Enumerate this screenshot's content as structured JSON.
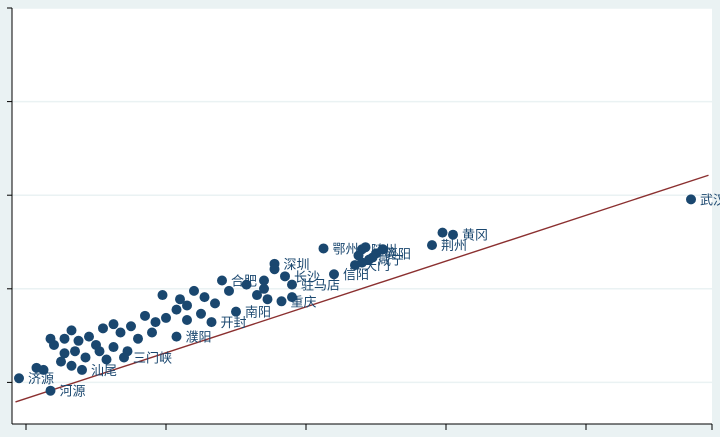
{
  "chart_data": {
    "type": "scatter",
    "title": "",
    "xlabel": "",
    "ylabel": "",
    "xlim": [
      0,
      10
    ],
    "ylim": [
      0,
      10
    ],
    "grid": true,
    "colors": {
      "point": "#1a476f",
      "fit_line": "#8b3030",
      "label": "#1a476f",
      "grid": "#eaf2f3",
      "background": "#eaf2f3",
      "plot_area": "#ffffff"
    },
    "fit_line": {
      "x": [
        0.05,
        9.95
      ],
      "y": [
        0.53,
        5.98
      ]
    },
    "labeled_points": [
      {
        "label": "武汉",
        "x": 9.7,
        "y": 5.4
      },
      {
        "label": "黄冈",
        "x": 6.3,
        "y": 4.55
      },
      {
        "label": "荆州",
        "x": 6.0,
        "y": 4.3
      },
      {
        "label": "鄂州",
        "x": 4.45,
        "y": 4.22
      },
      {
        "label": "随州",
        "x": 5.0,
        "y": 4.2
      },
      {
        "label": "襄阳",
        "x": 5.2,
        "y": 4.1
      },
      {
        "label": "咸宁",
        "x": 5.1,
        "y": 3.95
      },
      {
        "label": "天门",
        "x": 4.9,
        "y": 3.82
      },
      {
        "label": "信阳",
        "x": 4.6,
        "y": 3.6
      },
      {
        "label": "深圳",
        "x": 3.75,
        "y": 3.85
      },
      {
        "label": "长沙",
        "x": 3.9,
        "y": 3.55
      },
      {
        "label": "合肥",
        "x": 3.0,
        "y": 3.45
      },
      {
        "label": "驻马店",
        "x": 4.0,
        "y": 3.35
      },
      {
        "label": "重庆",
        "x": 3.85,
        "y": 2.95
      },
      {
        "label": "南阳",
        "x": 3.2,
        "y": 2.7
      },
      {
        "label": "开封",
        "x": 2.85,
        "y": 2.45
      },
      {
        "label": "濮阳",
        "x": 2.35,
        "y": 2.1
      },
      {
        "label": "三门峡",
        "x": 1.6,
        "y": 1.6
      },
      {
        "label": "汕尾",
        "x": 1.0,
        "y": 1.3
      },
      {
        "label": "济源",
        "x": 0.1,
        "y": 1.1
      },
      {
        "label": "河源",
        "x": 0.55,
        "y": 0.8
      }
    ],
    "points": [
      {
        "label": "武汉",
        "x": 9.7,
        "y": 5.4
      },
      {
        "label": "黄冈",
        "x": 6.3,
        "y": 4.55
      },
      {
        "label": "",
        "x": 6.15,
        "y": 4.6
      },
      {
        "label": "荆州",
        "x": 6.0,
        "y": 4.3
      },
      {
        "label": "鄂州",
        "x": 4.45,
        "y": 4.22
      },
      {
        "label": "随州",
        "x": 5.0,
        "y": 4.2
      },
      {
        "label": "襄阳",
        "x": 5.2,
        "y": 4.1
      },
      {
        "label": "",
        "x": 5.05,
        "y": 4.25
      },
      {
        "label": "",
        "x": 5.3,
        "y": 4.2
      },
      {
        "label": "",
        "x": 5.15,
        "y": 4.0
      },
      {
        "label": "咸宁",
        "x": 5.1,
        "y": 3.95
      },
      {
        "label": "",
        "x": 4.95,
        "y": 4.05
      },
      {
        "label": "天门",
        "x": 4.9,
        "y": 3.82
      },
      {
        "label": "",
        "x": 5.0,
        "y": 3.88
      },
      {
        "label": "信阳",
        "x": 4.6,
        "y": 3.6
      },
      {
        "label": "深圳",
        "x": 3.75,
        "y": 3.85
      },
      {
        "label": "",
        "x": 3.75,
        "y": 3.72
      },
      {
        "label": "长沙",
        "x": 3.9,
        "y": 3.55
      },
      {
        "label": "",
        "x": 3.6,
        "y": 3.45
      },
      {
        "label": "合肥",
        "x": 3.0,
        "y": 3.45
      },
      {
        "label": "驻马店",
        "x": 4.0,
        "y": 3.35
      },
      {
        "label": "",
        "x": 3.35,
        "y": 3.35
      },
      {
        "label": "",
        "x": 3.6,
        "y": 3.25
      },
      {
        "label": "",
        "x": 3.5,
        "y": 3.1
      },
      {
        "label": "",
        "x": 3.65,
        "y": 3.0
      },
      {
        "label": "重庆",
        "x": 3.85,
        "y": 2.95
      },
      {
        "label": "",
        "x": 4.0,
        "y": 3.05
      },
      {
        "label": "",
        "x": 3.1,
        "y": 3.2
      },
      {
        "label": "",
        "x": 2.6,
        "y": 3.2
      },
      {
        "label": "",
        "x": 2.15,
        "y": 3.1
      },
      {
        "label": "",
        "x": 2.4,
        "y": 3.0
      },
      {
        "label": "",
        "x": 2.75,
        "y": 3.05
      },
      {
        "label": "",
        "x": 2.9,
        "y": 2.9
      },
      {
        "label": "",
        "x": 2.5,
        "y": 2.85
      },
      {
        "label": "南阳",
        "x": 3.2,
        "y": 2.7
      },
      {
        "label": "",
        "x": 2.7,
        "y": 2.65
      },
      {
        "label": "",
        "x": 2.35,
        "y": 2.75
      },
      {
        "label": "",
        "x": 2.2,
        "y": 2.55
      },
      {
        "label": "",
        "x": 2.5,
        "y": 2.5
      },
      {
        "label": "开封",
        "x": 2.85,
        "y": 2.45
      },
      {
        "label": "",
        "x": 2.05,
        "y": 2.45
      },
      {
        "label": "",
        "x": 1.9,
        "y": 2.6
      },
      {
        "label": "",
        "x": 1.7,
        "y": 2.35
      },
      {
        "label": "",
        "x": 1.45,
        "y": 2.4
      },
      {
        "label": "濮阳",
        "x": 2.35,
        "y": 2.1
      },
      {
        "label": "",
        "x": 2.0,
        "y": 2.2
      },
      {
        "label": "",
        "x": 1.8,
        "y": 2.05
      },
      {
        "label": "",
        "x": 1.55,
        "y": 2.2
      },
      {
        "label": "",
        "x": 1.3,
        "y": 2.3
      },
      {
        "label": "",
        "x": 1.1,
        "y": 2.1
      },
      {
        "label": "",
        "x": 0.95,
        "y": 2.0
      },
      {
        "label": "",
        "x": 0.75,
        "y": 2.05
      },
      {
        "label": "",
        "x": 0.85,
        "y": 2.25
      },
      {
        "label": "",
        "x": 1.2,
        "y": 1.9
      },
      {
        "label": "",
        "x": 1.45,
        "y": 1.85
      },
      {
        "label": "",
        "x": 0.6,
        "y": 1.9
      },
      {
        "label": "",
        "x": 0.9,
        "y": 1.75
      },
      {
        "label": "",
        "x": 1.65,
        "y": 1.75
      },
      {
        "label": "三门峡",
        "x": 1.6,
        "y": 1.6
      },
      {
        "label": "",
        "x": 0.75,
        "y": 1.7
      },
      {
        "label": "",
        "x": 0.55,
        "y": 2.05
      },
      {
        "label": "",
        "x": 1.35,
        "y": 1.55
      },
      {
        "label": "",
        "x": 0.7,
        "y": 1.5
      },
      {
        "label": "",
        "x": 0.35,
        "y": 1.35
      },
      {
        "label": "汕尾",
        "x": 1.0,
        "y": 1.3
      },
      {
        "label": "",
        "x": 0.85,
        "y": 1.4
      },
      {
        "label": "济源",
        "x": 0.1,
        "y": 1.1
      },
      {
        "label": "河源",
        "x": 0.55,
        "y": 0.8
      },
      {
        "label": "",
        "x": 0.45,
        "y": 1.3
      },
      {
        "label": "",
        "x": 1.05,
        "y": 1.6
      },
      {
        "label": "",
        "x": 1.25,
        "y": 1.75
      }
    ]
  }
}
